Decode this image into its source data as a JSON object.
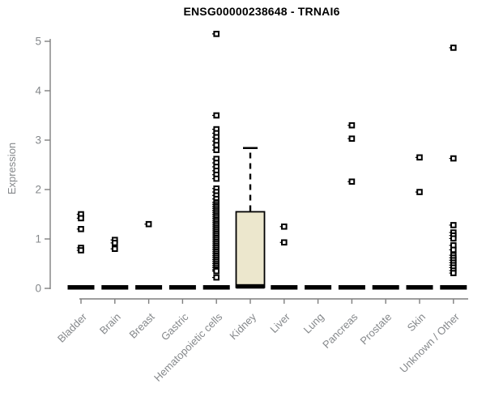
{
  "chart_data": {
    "type": "boxplot",
    "title": "ENSG00000238648 - TRNAI6",
    "ylabel": "Expression",
    "xlabel": "",
    "ylim": [
      0,
      5
    ],
    "yticks": [
      0,
      1,
      2,
      3,
      4,
      5
    ],
    "grid": false,
    "legend": "none",
    "categories": [
      "Bladder",
      "Brain",
      "Breast",
      "Gastric",
      "Hematopoietic cells",
      "Kidney",
      "Liver",
      "Lung",
      "Pancreas",
      "Prostate",
      "Skin",
      "Unknown / Other"
    ],
    "series": [
      {
        "category": "Bladder",
        "median_bar": 0.02,
        "points": [
          1.5,
          1.42,
          1.2,
          0.82,
          0.77
        ]
      },
      {
        "category": "Brain",
        "median_bar": 0.02,
        "points": [
          0.98,
          0.92,
          0.8
        ]
      },
      {
        "category": "Breast",
        "median_bar": 0.02,
        "points": [
          1.3
        ]
      },
      {
        "category": "Gastric",
        "median_bar": 0.02,
        "points": []
      },
      {
        "category": "Hematopoietic cells",
        "median_bar": 0.02,
        "points": [
          5.15,
          3.5,
          3.22,
          3.14,
          3.06,
          2.98,
          2.9,
          2.8,
          2.62,
          2.54,
          2.46,
          2.38,
          2.3,
          2.22,
          2.02,
          1.95,
          1.88,
          1.81,
          1.74,
          1.7,
          1.66,
          1.62,
          1.58,
          1.54,
          1.5,
          1.46,
          1.42,
          1.38,
          1.34,
          1.3,
          1.26,
          1.22,
          1.18,
          1.14,
          1.1,
          1.06,
          1.02,
          0.98,
          0.94,
          0.9,
          0.86,
          0.82,
          0.78,
          0.74,
          0.7,
          0.66,
          0.62,
          0.58,
          0.54,
          0.5,
          0.46,
          0.42,
          0.38,
          0.35,
          0.22
        ]
      },
      {
        "category": "Kidney",
        "box": {
          "q1": 0.02,
          "median": 0.04,
          "q3": 1.55,
          "whisker_high": 2.84
        },
        "points": []
      },
      {
        "category": "Liver",
        "median_bar": 0.02,
        "points": [
          1.25,
          0.93
        ]
      },
      {
        "category": "Lung",
        "median_bar": 0.02,
        "points": []
      },
      {
        "category": "Pancreas",
        "median_bar": 0.02,
        "points": [
          3.3,
          3.03,
          2.16
        ]
      },
      {
        "category": "Prostate",
        "median_bar": 0.02,
        "points": []
      },
      {
        "category": "Skin",
        "median_bar": 0.02,
        "points": [
          2.65,
          1.95
        ]
      },
      {
        "category": "Unknown / Other",
        "median_bar": 0.02,
        "points": [
          4.87,
          2.63,
          1.28,
          1.13,
          1.07,
          1.01,
          0.87,
          0.78,
          0.67,
          0.62,
          0.57,
          0.52,
          0.47,
          0.42,
          0.36,
          0.31
        ]
      }
    ],
    "colors": {
      "background": "#ffffff",
      "axis_line": "#7f7f7f",
      "tick_label": "#85888b",
      "title": "#000000",
      "box_fill": "#ece7cd",
      "box_border": "#000000",
      "point": "#000000",
      "median_bar": "#000000"
    }
  }
}
